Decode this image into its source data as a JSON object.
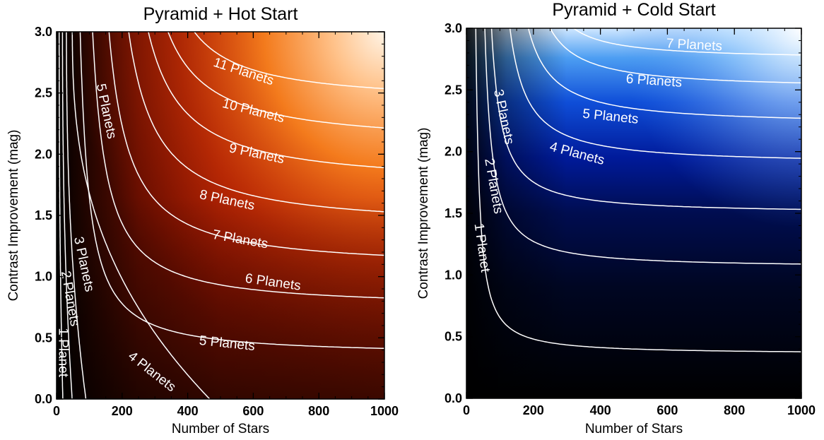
{
  "chart_data": [
    {
      "type": "heatmap",
      "title": "Pyramid + Hot Start",
      "xlabel": "Number of Stars",
      "ylabel": "Contrast Improvement (mag)",
      "xlim": [
        0,
        1000
      ],
      "ylim": [
        0,
        3
      ],
      "xticks": [
        "0",
        "200",
        "400",
        "600",
        "800",
        "1000"
      ],
      "yticks": [
        "0.0",
        "0.5",
        "1.0",
        "1.5",
        "2.0",
        "2.5",
        "3.0"
      ],
      "colormap": [
        "#000000",
        "#3a0a00",
        "#8a1100",
        "#d0320a",
        "#f7761c",
        "#ffb06a",
        "#fff1e0"
      ],
      "contour_color": "#ffffff",
      "contours": [
        {
          "label": "1 Planet",
          "x_at_zero": 18,
          "x_at_three": 8,
          "asymptote_y": null,
          "label_x": 18,
          "label_y": 0.38,
          "label_angle": 90
        },
        {
          "label": "2 Planets",
          "x_at_zero": 45,
          "x_at_three": 18,
          "asymptote_y": null,
          "label_x": 40,
          "label_y": 0.82,
          "label_angle": 80
        },
        {
          "label": "3 Planets",
          "x_at_zero": 85,
          "x_at_three": 30,
          "asymptote_y": null,
          "label_x": 82,
          "label_y": 1.1,
          "label_angle": 78
        },
        {
          "label": "4 Planets",
          "x_at_zero": 460,
          "x_at_three": 48,
          "asymptote_y": null,
          "label_x": 290,
          "label_y": 0.22,
          "label_angle": 38
        },
        {
          "label": "5 Planets",
          "x_at_zero": null,
          "x_at_three": 72,
          "asymptote_y": 0.36,
          "label_x": 520,
          "label_y": 0.45,
          "label_angle": 6
        },
        {
          "label": "6 Planets",
          "x_at_zero": null,
          "x_at_three": 110,
          "asymptote_y": 0.75,
          "label_x": 660,
          "label_y": 0.95,
          "label_angle": 8
        },
        {
          "label": "7 Planets",
          "x_at_zero": null,
          "x_at_three": 160,
          "asymptote_y": 1.07,
          "label_x": 560,
          "label_y": 1.3,
          "label_angle": 10
        },
        {
          "label": "8 Planets",
          "x_at_zero": null,
          "x_at_three": 220,
          "asymptote_y": 1.4,
          "label_x": 520,
          "label_y": 1.62,
          "label_angle": 12
        },
        {
          "label": "9 Planets",
          "x_at_zero": null,
          "x_at_three": 280,
          "asymptote_y": 1.75,
          "label_x": 610,
          "label_y": 2.0,
          "label_angle": 12
        },
        {
          "label": "10 Planets",
          "x_at_zero": null,
          "x_at_three": 340,
          "asymptote_y": 2.08,
          "label_x": 600,
          "label_y": 2.35,
          "label_angle": 14
        },
        {
          "label": "11 Planets",
          "x_at_zero": null,
          "x_at_three": 420,
          "asymptote_y": 2.42,
          "label_x": 570,
          "label_y": 2.67,
          "label_angle": 18
        }
      ],
      "side_labels": [
        {
          "label": "5 Planets",
          "x": 150,
          "y": 2.35,
          "angle": 78
        }
      ]
    },
    {
      "type": "heatmap",
      "title": "Pyramid + Cold Start",
      "xlabel": "Number of Stars",
      "ylabel": "Contrast Improvement (mag)",
      "xlim": [
        0,
        1000
      ],
      "ylim": [
        0,
        3
      ],
      "xticks": [
        "0",
        "200",
        "400",
        "600",
        "800",
        "1000"
      ],
      "yticks": [
        "0.0",
        "0.5",
        "1.0",
        "1.5",
        "2.0",
        "2.5",
        "3.0"
      ],
      "colormap": [
        "#000000",
        "#000a2a",
        "#00146a",
        "#0a3ac8",
        "#2f86ec",
        "#9fd0ff",
        "#ffffff"
      ],
      "contour_color": "#ffffff",
      "contours": [
        {
          "label": "1 Planet",
          "x_at_three": 28,
          "asymptote_y": 0.36,
          "label_x": 45,
          "label_y": 1.22,
          "label_angle": 82
        },
        {
          "label": "2 Planets",
          "x_at_three": 55,
          "asymptote_y": 1.06,
          "label_x": 80,
          "label_y": 1.72,
          "label_angle": 80
        },
        {
          "label": "3 Planets",
          "x_at_three": 75,
          "asymptote_y": 1.5,
          "label_x": 110,
          "label_y": 2.28,
          "label_angle": 78
        },
        {
          "label": "4 Planets",
          "x_at_three": 130,
          "asymptote_y": 1.9,
          "label_x": 330,
          "label_y": 1.98,
          "label_angle": 15
        },
        {
          "label": "5 Planets",
          "x_at_three": 185,
          "asymptote_y": 2.22,
          "label_x": 430,
          "label_y": 2.28,
          "label_angle": 6
        },
        {
          "label": "6 Planets",
          "x_at_three": 250,
          "asymptote_y": 2.51,
          "label_x": 560,
          "label_y": 2.57,
          "label_angle": 4
        },
        {
          "label": "7 Planets",
          "x_at_three": 320,
          "asymptote_y": 2.75,
          "label_x": 680,
          "label_y": 2.86,
          "label_angle": 3
        }
      ]
    }
  ]
}
